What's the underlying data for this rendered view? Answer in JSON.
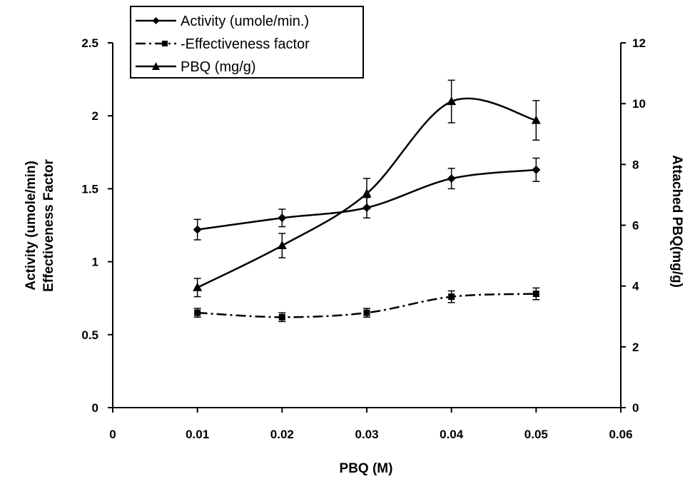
{
  "chart_data": {
    "type": "line",
    "title": "",
    "xlabel": "PBQ (M)",
    "ylabel_left_line1": "Activity (umole/min)",
    "ylabel_left_line2": "Effectiveness Factor",
    "ylabel_right": "Attached PBQ(mg/g)",
    "x": [
      0.01,
      0.02,
      0.03,
      0.04,
      0.05
    ],
    "xlim": [
      0,
      0.06
    ],
    "ylim_left": [
      0,
      2.5
    ],
    "ylim_right": [
      0,
      12
    ],
    "x_ticks": [
      "0",
      "0.01",
      "0.02",
      "0.03",
      "0.04",
      "0.05",
      "0.06"
    ],
    "y_left_ticks": [
      "0",
      "0.5",
      "1",
      "1.5",
      "2",
      "2.5"
    ],
    "y_right_ticks": [
      "0",
      "2",
      "4",
      "6",
      "8",
      "10",
      "12"
    ],
    "grid": false,
    "legend_position": "top-left",
    "series": [
      {
        "name": "Activity (umole/min.)",
        "axis": "left",
        "marker": "diamond",
        "line_style": "solid",
        "values": [
          1.22,
          1.3,
          1.37,
          1.57,
          1.63
        ],
        "errors": [
          0.07,
          0.06,
          0.07,
          0.07,
          0.08
        ]
      },
      {
        "name": "Effectiveness factor",
        "axis": "left",
        "marker": "square",
        "line_style": "dash-dot",
        "values": [
          0.65,
          0.62,
          0.65,
          0.76,
          0.78
        ],
        "errors": [
          0.03,
          0.03,
          0.03,
          0.04,
          0.04
        ]
      },
      {
        "name": "PBQ (mg/g)",
        "axis": "right",
        "marker": "triangle",
        "line_style": "solid",
        "values": [
          3.95,
          5.33,
          7.04,
          10.07,
          9.45
        ],
        "errors": [
          0.3,
          0.4,
          0.5,
          0.7,
          0.65
        ]
      }
    ]
  }
}
